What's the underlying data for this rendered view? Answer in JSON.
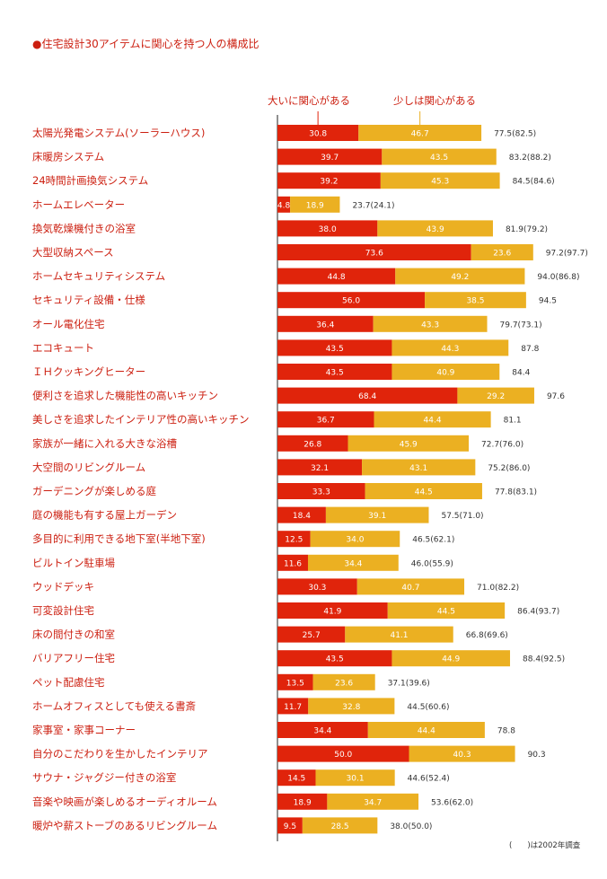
{
  "title": "●住宅設計30アイテムに関心を持つ人の構成比",
  "footnote": "(　　)は2002年調査",
  "legend": [
    {
      "label": "大いに関心がある",
      "color": "#e0240b"
    },
    {
      "label": "少しは関心がある",
      "color": "#ebb022"
    }
  ],
  "chart_data": {
    "type": "bar",
    "orientation": "horizontal",
    "stacked": true,
    "title": "●住宅設計30アイテムに関心を持つ人の構成比",
    "categories": [
      "太陽光発電システム(ソーラーハウス)",
      "床暖房システム",
      "24時間計画換気システム",
      "ホームエレベーター",
      "換気乾燥機付きの浴室",
      "大型収納スペース",
      "ホームセキュリティシステム",
      "セキュリティ設備・仕様",
      "オール電化住宅",
      "エコキュート",
      "ＩＨクッキングヒーター",
      "便利さを追求した機能性の高いキッチン",
      "美しさを追求したインテリア性の高いキッチン",
      "家族が一緒に入れる大きな浴槽",
      "大空間のリビングルーム",
      "ガーデニングが楽しめる庭",
      "庭の機能も有する屋上ガーデン",
      "多目的に利用できる地下室(半地下室)",
      "ビルトイン駐車場",
      "ウッドデッキ",
      "可変設計住宅",
      "床の間付きの和室",
      "バリアフリー住宅",
      "ペット配慮住宅",
      "ホームオフィスとしても使える書斎",
      "家事室・家事コーナー",
      "自分のこだわりを生かしたインテリア",
      "サウナ・ジャグジー付きの浴室",
      "音楽や映画が楽しめるオーディオルーム",
      "暖炉や薪ストーブのあるリビングルーム"
    ],
    "series": [
      {
        "name": "大いに関心がある",
        "color": "#e0240b",
        "values": [
          "30.8",
          "39.7",
          "39.2",
          "4.8",
          "38.0",
          "73.6",
          "44.8",
          "56.0",
          "36.4",
          "43.5",
          "43.5",
          "68.4",
          "36.7",
          "26.8",
          "32.1",
          "33.3",
          "18.4",
          "12.5",
          "11.6",
          "30.3",
          "41.9",
          "25.7",
          "43.5",
          "13.5",
          "11.7",
          "34.4",
          "50.0",
          "14.5",
          "18.9",
          "9.5"
        ]
      },
      {
        "name": "少しは関心がある",
        "color": "#ebb022",
        "values": [
          "46.7",
          "43.5",
          "45.3",
          "18.9",
          "43.9",
          "23.6",
          "49.2",
          "38.5",
          "43.3",
          "44.3",
          "40.9",
          "29.2",
          "44.4",
          "45.9",
          "43.1",
          "44.5",
          "39.1",
          "34.0",
          "34.4",
          "40.7",
          "44.5",
          "41.1",
          "44.9",
          "23.6",
          "32.8",
          "44.4",
          "40.3",
          "30.1",
          "34.7",
          "28.5"
        ]
      }
    ],
    "totals": [
      "77.5(82.5)",
      "83.2(88.2)",
      "84.5(84.6)",
      "23.7(24.1)",
      "81.9(79.2)",
      "97.2(97.7)",
      "94.0(86.8)",
      "94.5",
      "79.7(73.1)",
      "87.8",
      "84.4",
      "97.6",
      "81.1",
      "72.7(76.0)",
      "75.2(86.0)",
      "77.8(83.1)",
      "57.5(71.0)",
      "46.5(62.1)",
      "46.0(55.9)",
      "71.0(82.2)",
      "86.4(93.7)",
      "66.8(69.6)",
      "88.4(92.5)",
      "37.1(39.6)",
      "44.5(60.6)",
      "78.8",
      "90.3",
      "44.6(52.4)",
      "53.6(62.0)",
      "38.0(50.0)"
    ],
    "xlim": [
      0,
      100
    ]
  }
}
